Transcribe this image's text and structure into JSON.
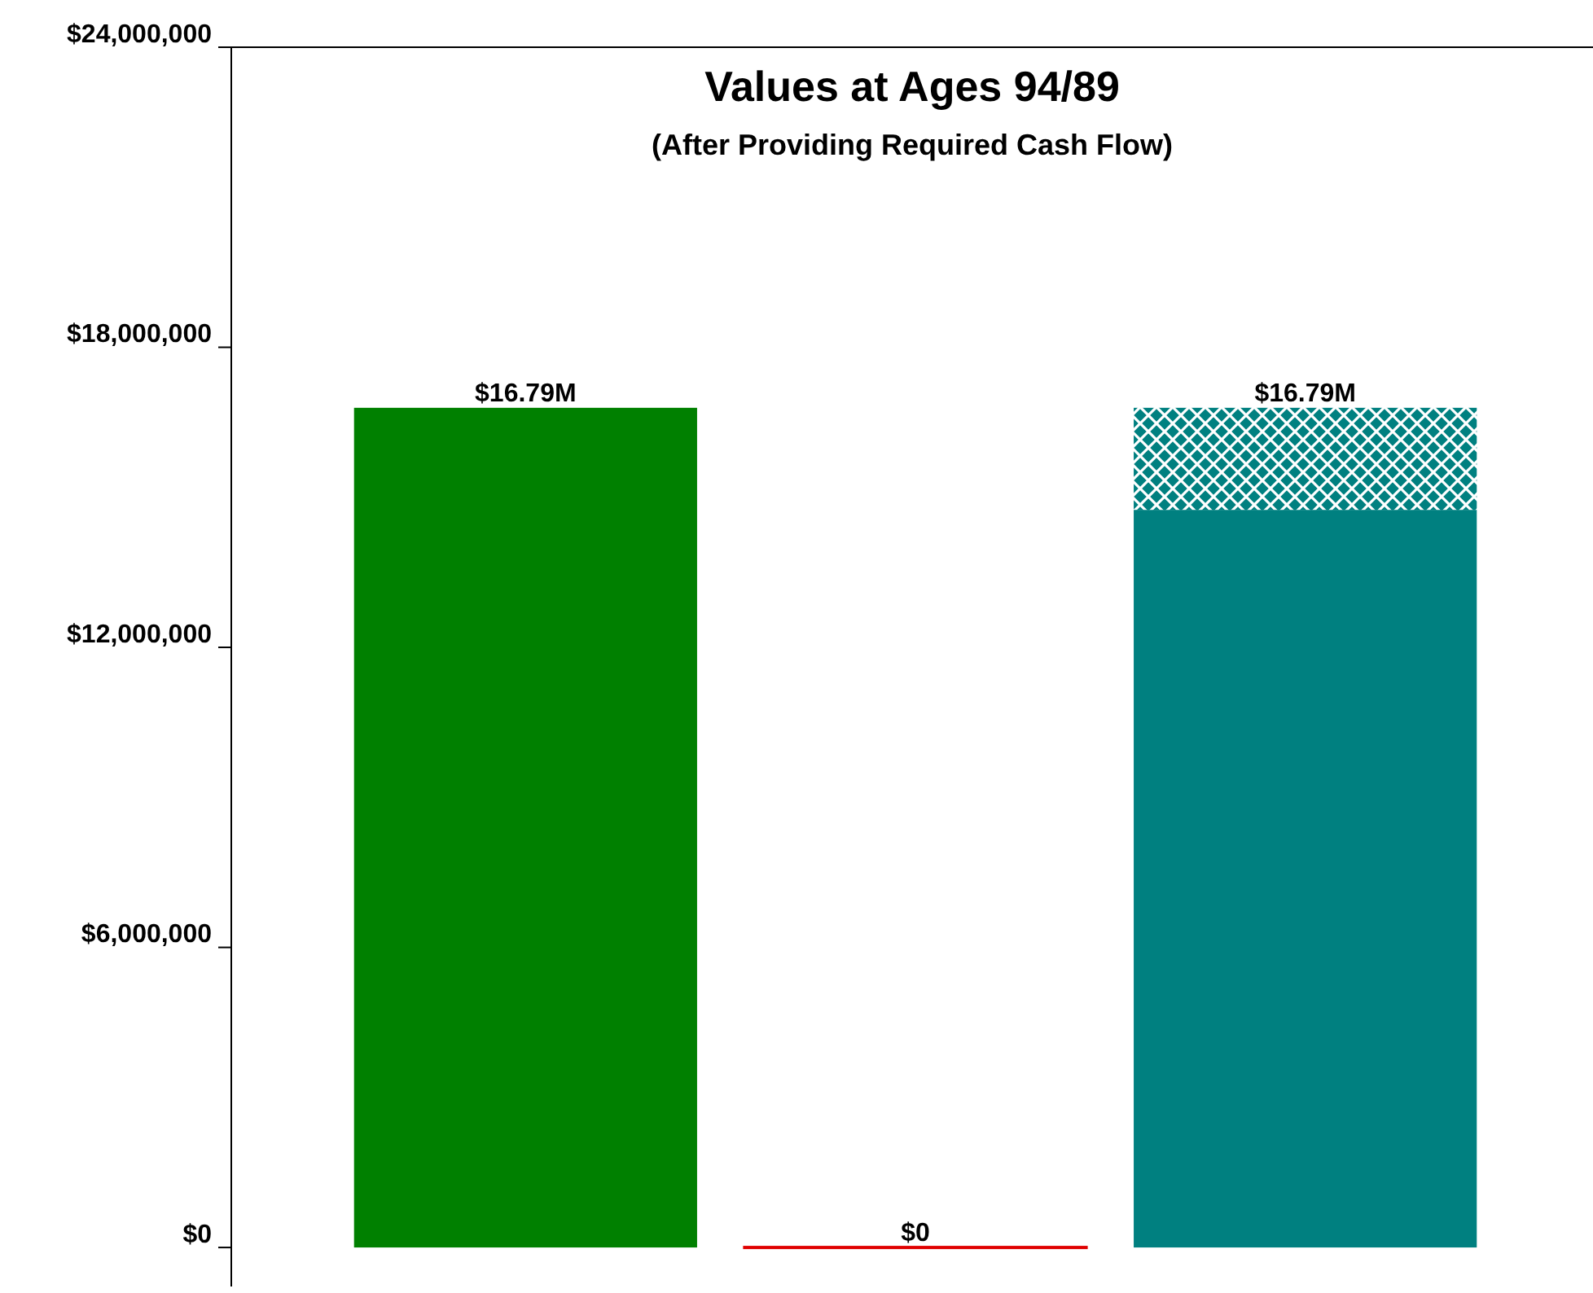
{
  "chart_data": {
    "type": "bar",
    "title": "Values at Ages 94/89",
    "subtitle": "(After Providing Required Cash Flow)",
    "categories": [
      null,
      null,
      null
    ],
    "stacked": true,
    "series": [
      {
        "color": "#008000",
        "values": [
          16790000,
          null,
          null
        ]
      },
      {
        "color": "#e00000",
        "values": [
          null,
          0,
          null
        ]
      },
      {
        "color": "#008080",
        "values": [
          null,
          null,
          14750000
        ]
      },
      {
        "color": "#008080",
        "values": [
          null,
          null,
          2040000
        ]
      }
    ],
    "totals": [
      "$16.79M",
      "$0",
      "$16.79M"
    ],
    "ylim": [
      -780000,
      24000000
    ],
    "yticks": [
      {
        "value": 0,
        "label": "$0"
      },
      {
        "value": 6000000,
        "label": "$6,000,000"
      },
      {
        "value": 12000000,
        "label": "$12,000,000"
      },
      {
        "value": 18000000,
        "label": "$18,000,000"
      },
      {
        "value": 24000000,
        "label": "$24,000,000"
      }
    ],
    "grid": false
  }
}
